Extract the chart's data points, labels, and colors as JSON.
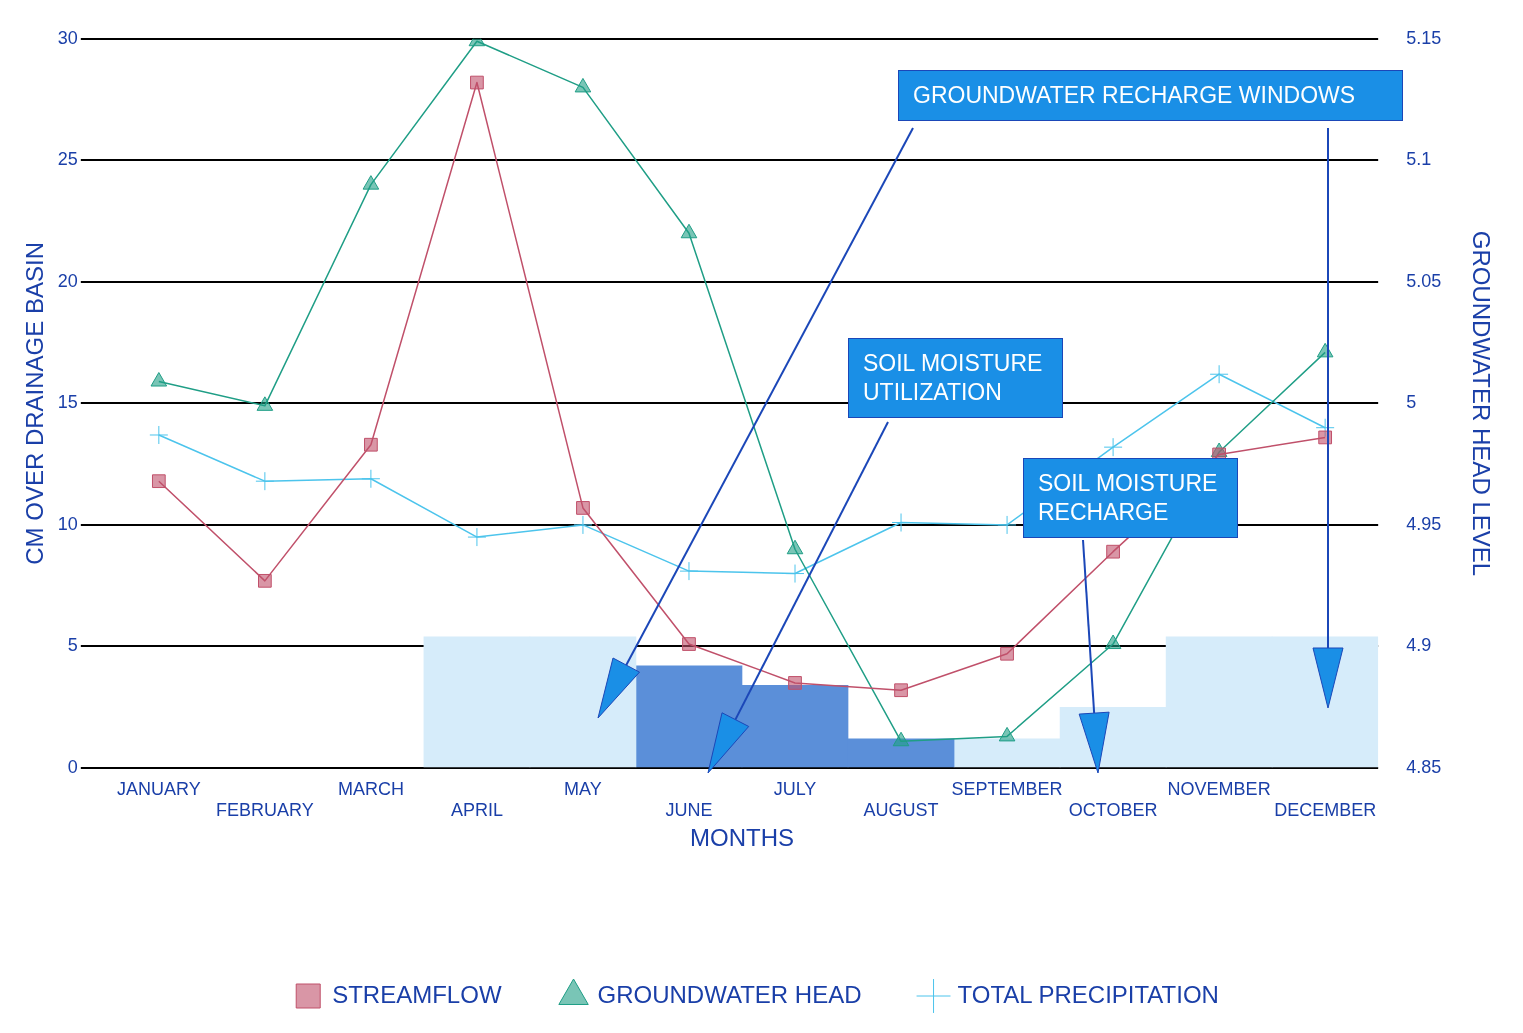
{
  "chart_data": {
    "type": "line",
    "xlabel": "MONTHS",
    "ylabel": "CM OVER DRAINAGE BASIN",
    "y2label": "GROUNDWATER HEAD LEVEL",
    "categories": [
      "JANUARY",
      "FEBRUARY",
      "MARCH",
      "APRIL",
      "MAY",
      "JUNE",
      "JULY",
      "AUGUST",
      "SEPTEMBER",
      "OCTOBER",
      "NOVEMBER",
      "DECEMBER"
    ],
    "series": [
      {
        "name": "STREAMFLOW",
        "color": "#c0506a",
        "marker": "square",
        "values": [
          11.8,
          7.7,
          13.3,
          28.2,
          10.7,
          5.1,
          3.5,
          3.2,
          4.7,
          8.9,
          12.9,
          13.6
        ]
      },
      {
        "name": "GROUNDWATER HEAD",
        "color": "#1f9e86",
        "marker": "triangle",
        "axis": "y2",
        "values": [
          5.009,
          4.999,
          5.09,
          5.149,
          5.13,
          5.07,
          4.94,
          4.861,
          4.863,
          4.901,
          4.98,
          5.021
        ]
      },
      {
        "name": "TOTAL PRECIPITATION",
        "color": "#4cc4ec",
        "marker": "cross",
        "values": [
          13.7,
          11.8,
          11.9,
          9.5,
          10.0,
          8.1,
          8.0,
          10.1,
          10.0,
          13.2,
          16.2,
          14.0
        ]
      },
      {
        "type": "bar",
        "color": "#d6ecfa",
        "values": [
          null,
          null,
          null,
          5.4,
          5.4,
          null,
          null,
          null,
          null,
          null,
          5.4,
          5.4
        ]
      },
      {
        "type": "bar",
        "color": "#5b8fd9",
        "values": [
          null,
          null,
          null,
          null,
          null,
          4.2,
          3.4,
          1.2,
          null,
          null,
          null,
          null
        ]
      },
      {
        "type": "bar",
        "color": "#d6ecfa",
        "values": [
          null,
          null,
          null,
          null,
          null,
          null,
          null,
          null,
          1.2,
          2.5,
          null,
          null
        ]
      }
    ],
    "ylim": [
      0,
      30
    ],
    "yticks": [
      0,
      5,
      10,
      15,
      20,
      25,
      30
    ],
    "y2lim": [
      4.85,
      5.15
    ],
    "y2ticks": [
      4.85,
      4.9,
      4.95,
      5,
      5.05,
      5.1,
      5.15
    ],
    "grid": "y",
    "legend": "bottom",
    "annotations": [
      "GROUNDWATER RECHARGE WINDOWS",
      "SOIL MOISTURE UTILIZATION",
      "SOIL MOISTURE RECHARGE"
    ]
  }
}
